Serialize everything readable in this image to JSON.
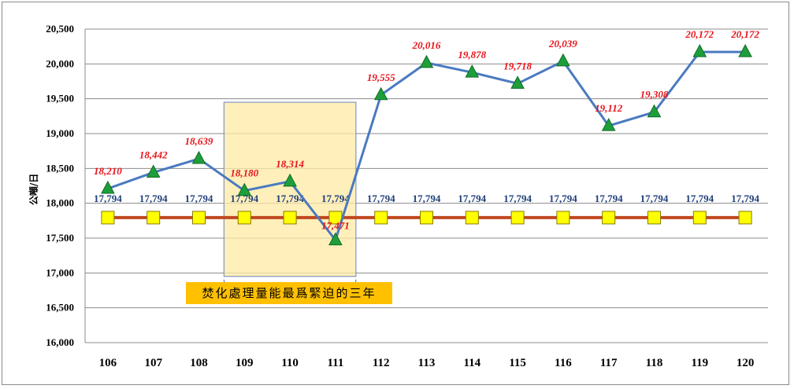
{
  "chart_data": {
    "type": "line",
    "categories": [
      "106",
      "107",
      "108",
      "109",
      "110",
      "111",
      "112",
      "113",
      "114",
      "115",
      "116",
      "117",
      "118",
      "119",
      "120"
    ],
    "ylabel": "公噸/日",
    "ylim": [
      16000,
      20500
    ],
    "yticks": [
      16000,
      16500,
      17000,
      17500,
      18000,
      18500,
      19000,
      19500,
      20000,
      20500
    ],
    "ytick_labels": [
      "16,000",
      "16,500",
      "17,000",
      "17,500",
      "18,000",
      "18,500",
      "19,000",
      "19,500",
      "20,000",
      "20,500"
    ],
    "grid": true,
    "series": [
      {
        "color": "#4a7ac0",
        "marker": "triangle",
        "marker_color": "#1e9e3a",
        "values": [
          18210,
          18442,
          18639,
          18180,
          18314,
          17471,
          19555,
          20016,
          19878,
          19718,
          20039,
          19112,
          19308,
          20172,
          20172
        ],
        "labels": [
          "18,210",
          "18,442",
          "18,639",
          "18,180",
          "18,314",
          "17,471",
          "19,555",
          "20,016",
          "19,878",
          "19,718",
          "20,039",
          "19,112",
          "19,308",
          "20,172",
          "20,172"
        ],
        "label_color": "#e8141b"
      },
      {
        "color": "#c0471f",
        "marker": "square",
        "marker_color": "#ffff00",
        "values": [
          17794,
          17794,
          17794,
          17794,
          17794,
          17794,
          17794,
          17794,
          17794,
          17794,
          17794,
          17794,
          17794,
          17794,
          17794
        ],
        "labels": [
          "17,794",
          "17,794",
          "17,794",
          "17,794",
          "17,794",
          "17,794",
          "17,794",
          "17,794",
          "17,794",
          "17,794",
          "17,794",
          "17,794",
          "17,794",
          "17,794",
          "17,794"
        ],
        "label_color": "#1f3f7a"
      }
    ],
    "annotation": {
      "text": "焚化處理量能最爲緊迫的三年",
      "highlight_categories": [
        "109",
        "111"
      ],
      "box_color": "#fde9a4",
      "box_border": "#6c85b8",
      "label_background": "#ffc000"
    }
  }
}
